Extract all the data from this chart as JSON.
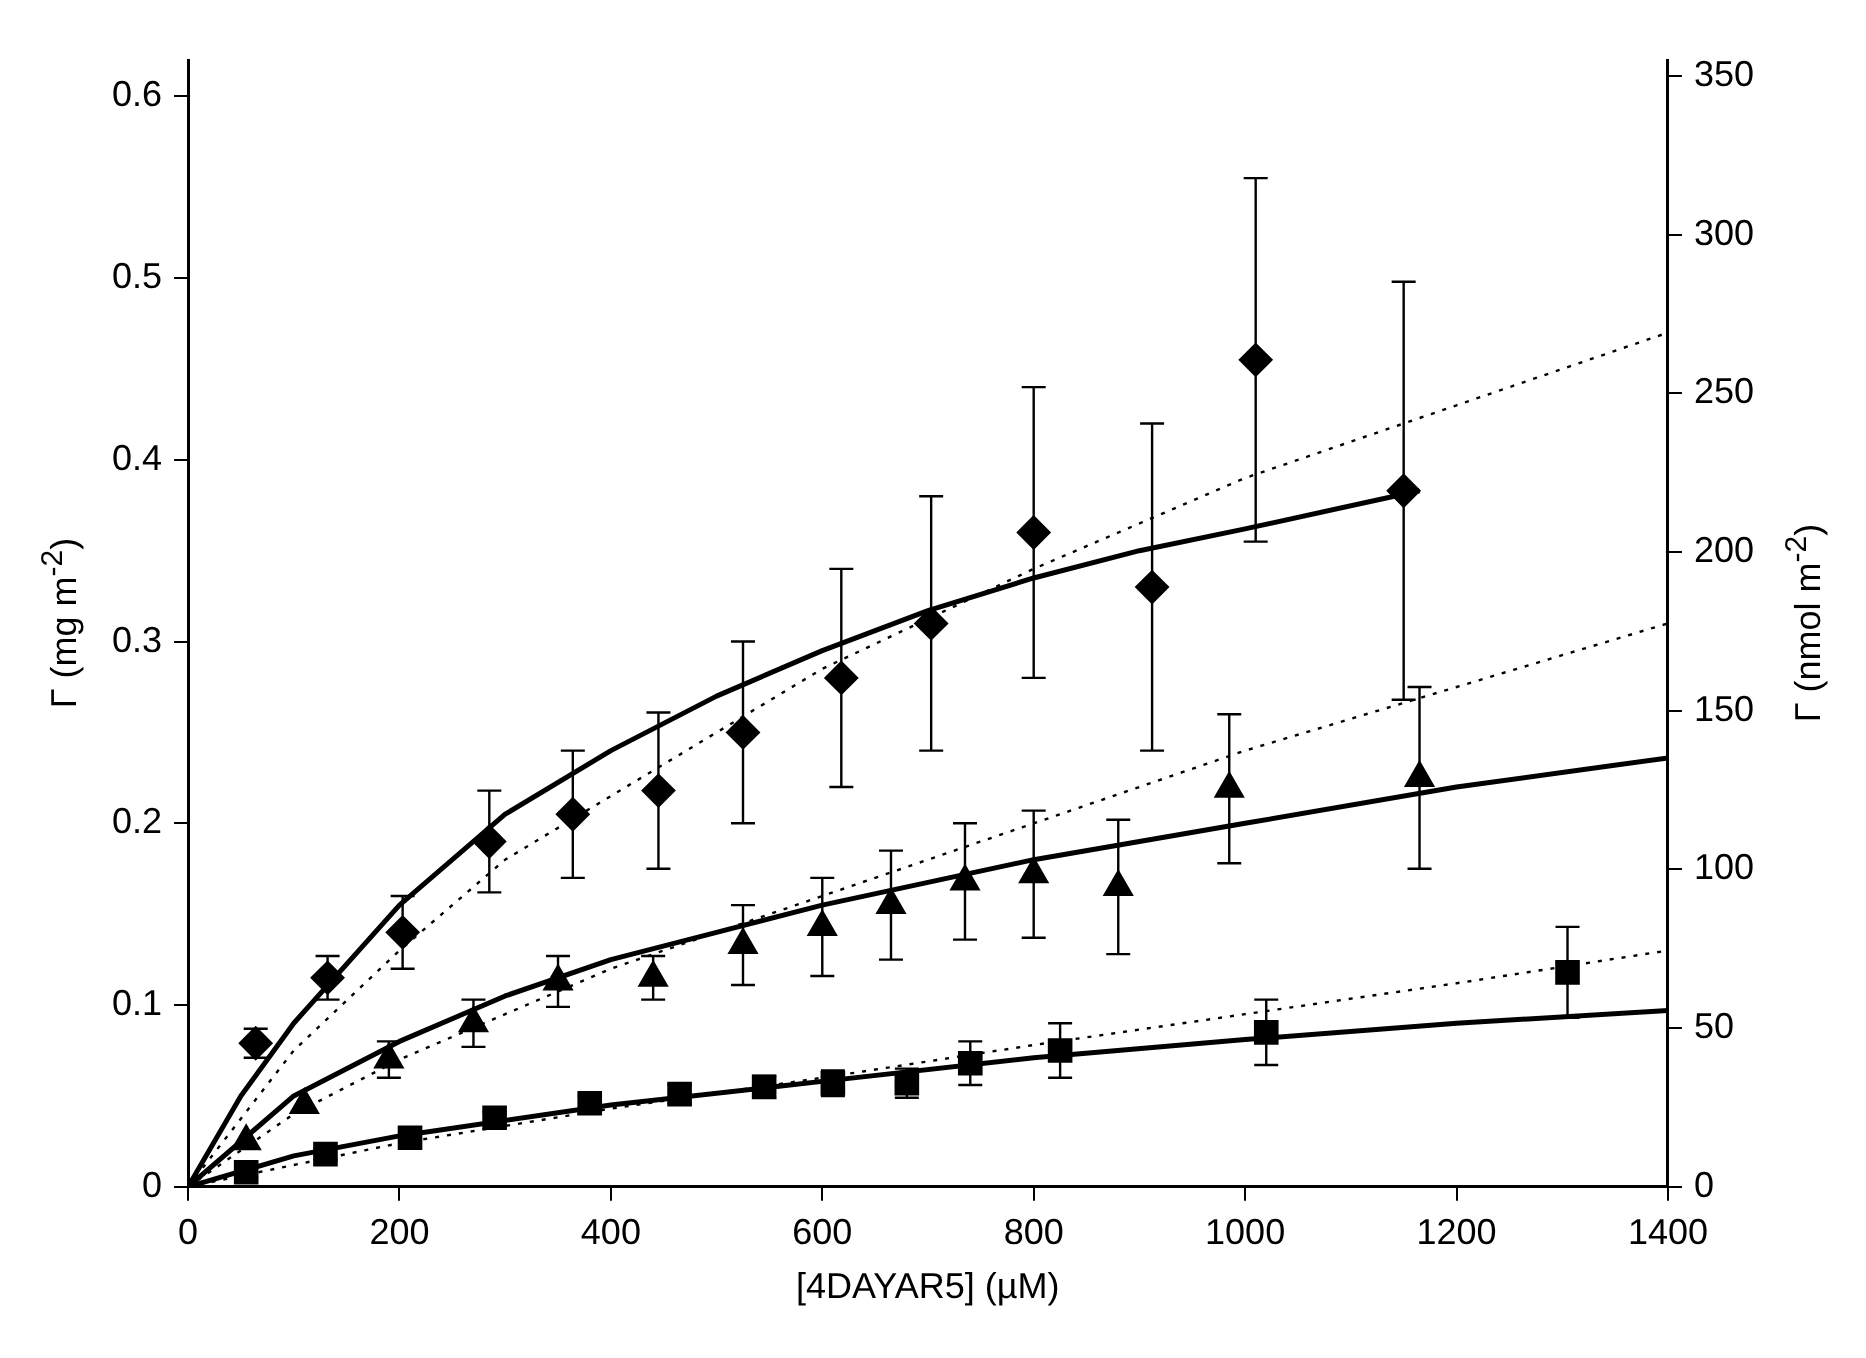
{
  "chart_data": {
    "type": "scatter",
    "xlabel": "[4DAYAR5] (µM)",
    "ylabel": "Γ (mg m$^{-2}$)",
    "y2label": "Γ (nmol m$^{-2}$)",
    "xlim": [
      0,
      1400
    ],
    "xticks": [
      0,
      200,
      400,
      600,
      800,
      1000,
      1200,
      1400
    ],
    "ylim": [
      0,
      0.62
    ],
    "yticks": [
      0,
      0.1,
      0.2,
      0.3,
      0.4,
      0.5,
      0.6
    ],
    "y2lim": [
      0,
      355
    ],
    "y2ticks": [
      0,
      50,
      100,
      150,
      200,
      250,
      300,
      350
    ],
    "grid": false,
    "legend": false,
    "series": [
      {
        "type": "line",
        "line_style": "solid",
        "color": "#000000",
        "x": [
          0,
          50,
          100,
          200,
          300,
          400,
          500,
          600,
          700,
          800,
          900,
          1000,
          1165
        ],
        "values": [
          0,
          0.05,
          0.09,
          0.155,
          0.205,
          0.24,
          0.27,
          0.295,
          0.317,
          0.335,
          0.35,
          0.362,
          0.383
        ]
      },
      {
        "type": "line",
        "line_style": "dotted",
        "color": "#000000",
        "x": [
          0,
          100,
          200,
          300,
          400,
          500,
          600,
          800,
          1000,
          1200,
          1400
        ],
        "values": [
          0,
          0.075,
          0.13,
          0.18,
          0.215,
          0.25,
          0.285,
          0.34,
          0.39,
          0.43,
          0.47
        ]
      },
      {
        "type": "line",
        "line_style": "solid",
        "color": "#000000",
        "x": [
          0,
          100,
          200,
          300,
          400,
          500,
          600,
          800,
          1000,
          1200,
          1400
        ],
        "values": [
          0,
          0.05,
          0.08,
          0.105,
          0.125,
          0.14,
          0.155,
          0.18,
          0.2,
          0.22,
          0.236
        ]
      },
      {
        "type": "line",
        "line_style": "dotted",
        "color": "#000000",
        "x": [
          0,
          100,
          200,
          300,
          400,
          600,
          800,
          1000,
          1200,
          1400
        ],
        "values": [
          0,
          0.04,
          0.07,
          0.095,
          0.12,
          0.16,
          0.2,
          0.24,
          0.275,
          0.31
        ]
      },
      {
        "type": "line",
        "line_style": "solid",
        "color": "#000000",
        "x": [
          0,
          100,
          200,
          400,
          600,
          800,
          1000,
          1200,
          1400
        ],
        "values": [
          0,
          0.017,
          0.028,
          0.045,
          0.058,
          0.071,
          0.081,
          0.09,
          0.097
        ]
      },
      {
        "type": "line",
        "line_style": "dotted",
        "color": "#000000",
        "x": [
          0,
          100,
          200,
          400,
          600,
          800,
          1000,
          1200,
          1400
        ],
        "values": [
          0,
          0.012,
          0.024,
          0.043,
          0.06,
          0.078,
          0.095,
          0.112,
          0.13
        ]
      },
      {
        "marker": "diamond",
        "color": "#000000",
        "x": [
          64,
          132,
          203,
          285,
          364,
          445,
          525,
          618,
          703,
          800,
          912,
          1010,
          1150
        ],
        "values": [
          0.079,
          0.115,
          0.14,
          0.19,
          0.205,
          0.218,
          0.25,
          0.28,
          0.31,
          0.36,
          0.33,
          0.455,
          0.383
        ],
        "errors": [
          0.008,
          0.012,
          0.02,
          0.028,
          0.035,
          0.043,
          0.05,
          0.06,
          0.07,
          0.08,
          0.09,
          0.1,
          0.115
        ]
      },
      {
        "marker": "triangle",
        "color": "#000000",
        "x": [
          55,
          110,
          190,
          270,
          350,
          440,
          525,
          600,
          665,
          735,
          800,
          880,
          985,
          1165
        ],
        "values": [
          0.025,
          0.045,
          0.07,
          0.09,
          0.113,
          0.115,
          0.133,
          0.143,
          0.155,
          0.168,
          0.172,
          0.165,
          0.219,
          0.225
        ],
        "errors": [
          null,
          null,
          0.01,
          0.013,
          0.014,
          0.012,
          0.022,
          0.027,
          0.03,
          0.032,
          0.035,
          0.037,
          0.041,
          0.05
        ]
      },
      {
        "marker": "square",
        "color": "#000000",
        "x": [
          55,
          130,
          210,
          290,
          380,
          465,
          545,
          610,
          680,
          740,
          825,
          1020,
          1305
        ],
        "values": [
          0.008,
          0.018,
          0.027,
          0.038,
          0.046,
          0.051,
          0.055,
          0.057,
          0.057,
          0.068,
          0.075,
          0.085,
          0.118
        ],
        "errors": [
          0.003,
          0.003,
          0.003,
          0.003,
          0.004,
          0.005,
          0.006,
          0.007,
          0.008,
          0.012,
          0.015,
          0.018,
          0.025
        ]
      }
    ]
  }
}
